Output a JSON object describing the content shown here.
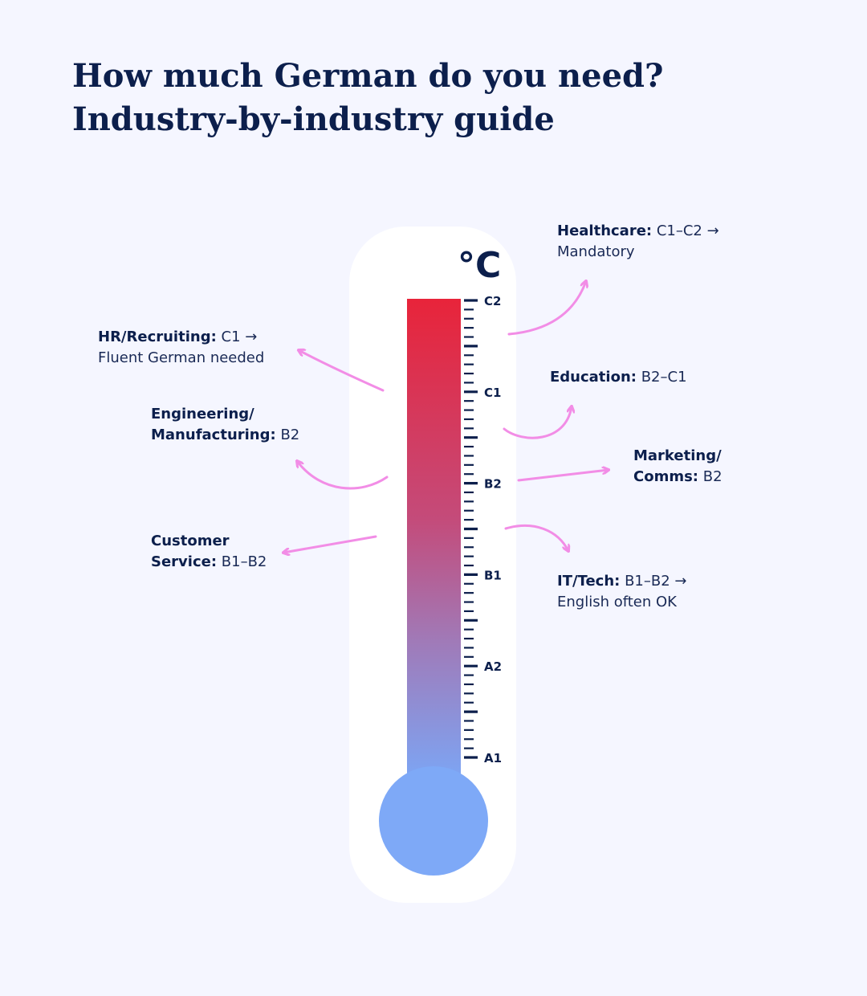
{
  "title": {
    "line1": "How much German do you need?",
    "line2": "Industry-by-industry guide"
  },
  "thermometer": {
    "unit": "°C",
    "levels": [
      "A1",
      "A2",
      "B1",
      "B2",
      "C1",
      "C2"
    ],
    "colors": {
      "top": "#e8243a",
      "bottom": "#7aa8f8",
      "bulb": "#7ea9f7",
      "tube_bg": "#ffffff",
      "ticks": "#0c1f4c"
    }
  },
  "arrow_color": "#f28de6",
  "industries": [
    {
      "name": "Healthcare:",
      "level": "C1–C2 →",
      "note": "Mandatory"
    },
    {
      "name": "HR/Recruiting:",
      "level": "C1 →",
      "note": "Fluent German needed"
    },
    {
      "name": "Education:",
      "level": "B2–C1",
      "note": ""
    },
    {
      "name_line1": "Engineering/",
      "name_line2": "Manufacturing:",
      "level": "B2"
    },
    {
      "name_line1": "Marketing/",
      "name_line2": "Comms:",
      "level": "B2"
    },
    {
      "name_line1": "Customer",
      "name_line2": "Service:",
      "level": "B1–B2"
    },
    {
      "name": "IT/Tech:",
      "level": "B1–B2 →",
      "note": "English often OK"
    }
  ]
}
